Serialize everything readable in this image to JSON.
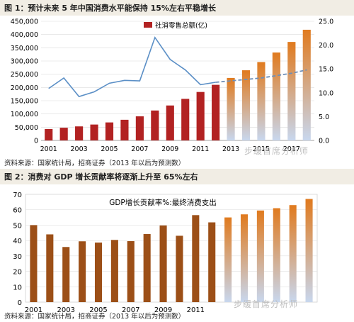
{
  "figure1": {
    "caption": "图 1：预计未来 5 年中国消费水平能保持 15%左右平稳增长",
    "source": "资料来源：国家统计局，招商证券（2013 年以后为预测数）",
    "watermark": "步缓首席分析师",
    "legend": "社消零售总额(亿)",
    "colors": {
      "hist": "#b22222",
      "forecast_top": "#e07a1e",
      "forecast_bottom": "#c8d7ee",
      "line": "#5b8fc6",
      "dash": "#6e8fb8"
    }
  },
  "figure2": {
    "caption": "图 2：消费对 GDP 增长贡献率将逐渐上升至 65%左右",
    "source": "资料来源：国家统计局，招商证券（2013 年以后为预测数）",
    "watermark": "步缓首席分析师",
    "colors": {
      "hist": "#9c4f17",
      "forecast_top": "#e07a1e",
      "forecast_bottom": "#c8d7ee"
    }
  },
  "chart_data": [
    {
      "type": "bar",
      "x": [
        2001,
        2002,
        2003,
        2004,
        2005,
        2006,
        2007,
        2008,
        2009,
        2010,
        2011,
        2012,
        2013,
        2014,
        2015,
        2016,
        2017,
        2018
      ],
      "xticks": [
        "2001",
        "2003",
        "2005",
        "2007",
        "2009",
        "2011",
        "2013",
        "2015",
        "2017"
      ],
      "forecast_from": 2013,
      "series": [
        {
          "name": "社消零售总额(亿)",
          "axis": "left",
          "kind": "bar",
          "values": [
            43000,
            48000,
            53000,
            60000,
            68000,
            78000,
            91000,
            113000,
            132000,
            157000,
            183000,
            210000,
            236000,
            265000,
            296000,
            332000,
            372000,
            418000
          ]
        },
        {
          "axis": "right",
          "kind": "line",
          "values": [
            10.9,
            13.1,
            9.2,
            10.2,
            12.0,
            12.6,
            12.5,
            21.6,
            17.0,
            14.8,
            11.7,
            12.2,
            12.5,
            12.8,
            13.1,
            13.6,
            14.1,
            14.8
          ]
        }
      ],
      "ylim": [
        0,
        450000
      ],
      "yticks": [
        "0",
        "50,000",
        "100,000",
        "150,000",
        "200,000",
        "250,000",
        "300,000",
        "350,000",
        "400,000",
        "450,000"
      ],
      "y2lim": [
        0,
        25
      ],
      "y2ticks": [
        "0.0",
        "5.0",
        "10.0",
        "15.0",
        "20.0",
        "25.0"
      ]
    },
    {
      "type": "bar",
      "title": "GDP增长贡献率%:最终消费支出",
      "x": [
        2001,
        2002,
        2003,
        2004,
        2005,
        2006,
        2007,
        2008,
        2009,
        2010,
        2011,
        2012,
        2013,
        2014,
        2015,
        2016,
        2017,
        2018
      ],
      "xticks": [
        "2001",
        "2003",
        "2005",
        "2007",
        "2009",
        "2011"
      ],
      "forecast_from": 2013,
      "values": [
        50.0,
        44.0,
        35.8,
        39.5,
        38.7,
        40.4,
        39.6,
        44.2,
        49.8,
        43.1,
        56.5,
        51.8,
        55.0,
        57.0,
        59.5,
        61.0,
        63.0,
        67.0
      ],
      "ylim": [
        0,
        70
      ],
      "yticks": [
        "0",
        "10",
        "20",
        "30",
        "40",
        "50",
        "60",
        "70"
      ]
    }
  ]
}
